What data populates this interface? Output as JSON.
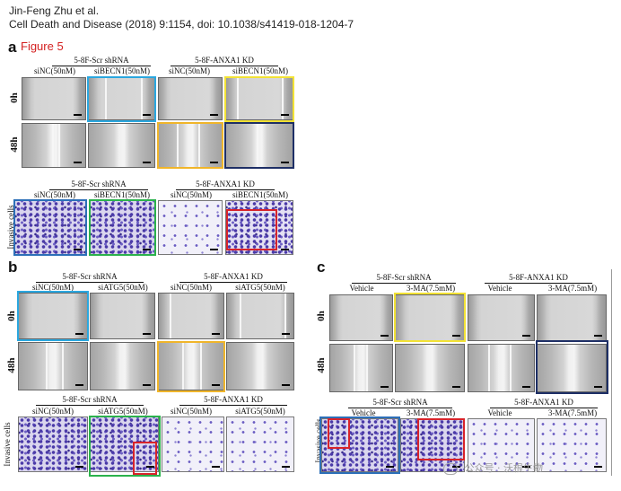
{
  "citation": {
    "line1": "Jin-Feng Zhu et al.",
    "line2": "Cell Death and Disease (2018) 9:1154, doi: 10.1038/s41419-018-1204-7"
  },
  "figure": {
    "title": "Figure 5",
    "panels": {
      "a": {
        "label": "a",
        "top_headers": {
          "left": "5-8F-Scr shRNA",
          "right": "5-8F-ANXA1 KD"
        },
        "sub_headers": [
          "siNC(50nM)",
          "siBECN1(50nM)",
          "siNC(50nM)",
          "siBECN1(50nM)"
        ],
        "rows": [
          "0h",
          "48h"
        ],
        "invasion_headers": {
          "left": "5-8F-Scr shRNA",
          "right": "5-8F-ANXA1 KD"
        },
        "invasion_sub": [
          "siNC(50nM)",
          "siBECN1(50nM)",
          "siNC(50nM)",
          "siBECN1(50nM)"
        ],
        "invasion_row": "Invasive cells"
      },
      "b": {
        "label": "b",
        "top_headers": {
          "left": "5-8F-Scr shRNA",
          "right": "5-8F-ANXA1 KD"
        },
        "sub_headers": [
          "siNC(50nM)",
          "siATG5(50nM)",
          "siNC(50nM)",
          "siATG5(50nM)"
        ],
        "rows": [
          "0h",
          "48h"
        ],
        "invasion_headers": {
          "left": "5-8F-Scr shRNA",
          "right": "5-8F-ANXA1 KD"
        },
        "invasion_sub": [
          "siNC(50nM)",
          "siATG5(50nM)",
          "siNC(50nM)",
          "siATG5(50nM)"
        ],
        "invasion_row": "Invasive cells"
      },
      "c": {
        "label": "c",
        "top_headers": {
          "left": "5-8F-Scr shRNA",
          "right": "5-8F-ANXA1 KD"
        },
        "sub_headers": [
          "Vehicle",
          "3-MA(7.5mM)",
          "Vehicle",
          "3-MA(7.5mM)"
        ],
        "rows": [
          "0h",
          "48h"
        ],
        "invasion_headers": {
          "left": "5-8F-Scr shRNA",
          "right": "5-8F-ANXA1 KD"
        },
        "invasion_sub": [
          "Vehicle",
          "3-MA(7.5mM)",
          "Vehicle",
          "3-MA(7.5mM)"
        ],
        "invasion_row": "Invasive cells"
      }
    },
    "highlight_colors": {
      "light_blue": "#2aa7df",
      "yellow": "#f2e234",
      "orange": "#f0b52a",
      "navy": "#1e2f66",
      "dark_blue": "#2c6fb8",
      "green": "#2bb24c",
      "red": "#d8232a"
    }
  },
  "watermark": {
    "icon": "wechat-icon",
    "text": "公众号 · 沃根生物"
  }
}
